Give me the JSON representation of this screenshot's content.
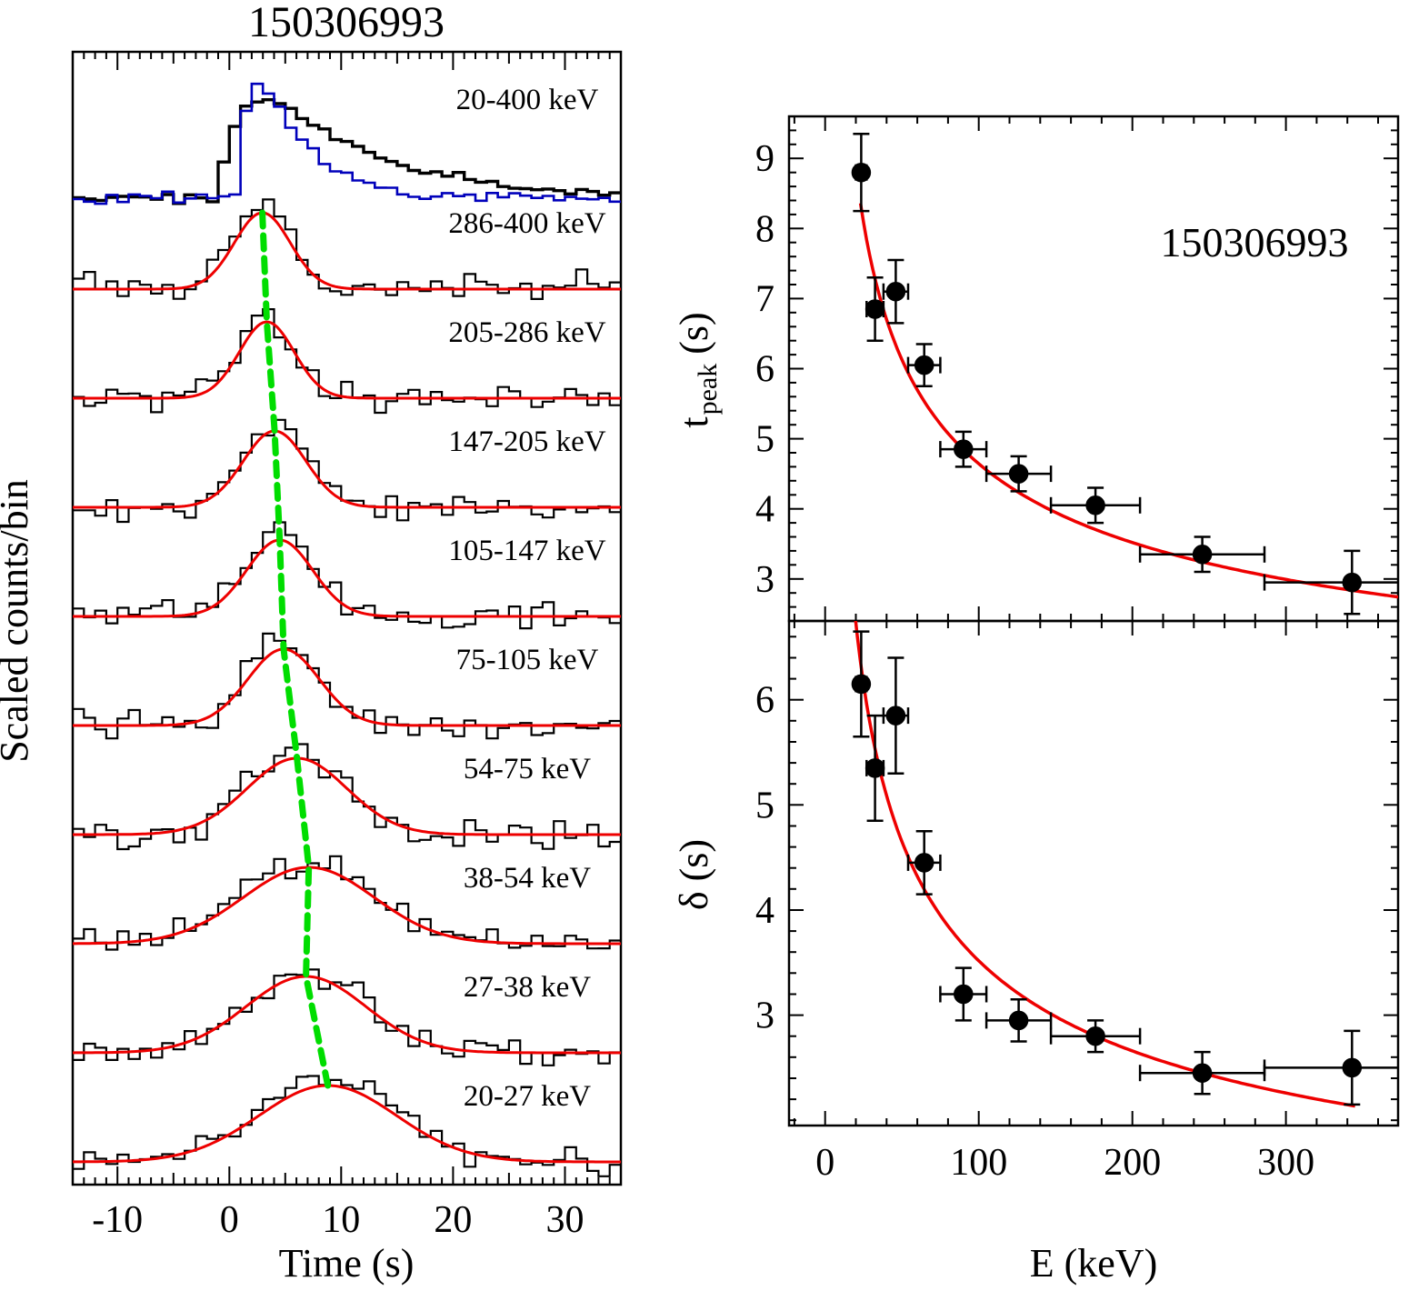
{
  "figure": {
    "kind": "gamma-ray-burst-spectral-lag-figure"
  },
  "chart_data": [
    {
      "id": "lightcurves",
      "type": "line",
      "title": "150306993",
      "xlabel": "Time (s)",
      "ylabel": "Scaled counts/bin",
      "xlim": [
        -14,
        35
      ],
      "xticks": [
        -10,
        0,
        10,
        20,
        30
      ],
      "bin_width_s": 1,
      "colors": {
        "histogram": "#000000",
        "overlay": "#0000bb",
        "fit": "#ee0000",
        "peak_track": "#00dd00"
      },
      "bands": [
        {
          "label": "20-400 keV",
          "kind": "composite"
        },
        {
          "label": "286-400 keV",
          "t_peak": 2.95,
          "delta": 2.5
        },
        {
          "label": "205-286 keV",
          "t_peak": 3.35,
          "delta": 2.45
        },
        {
          "label": "147-205 keV",
          "t_peak": 4.05,
          "delta": 2.8
        },
        {
          "label": "105-147 keV",
          "t_peak": 4.5,
          "delta": 2.95
        },
        {
          "label": "75-105 keV",
          "t_peak": 4.85,
          "delta": 3.2
        },
        {
          "label": "54-75 keV",
          "t_peak": 6.05,
          "delta": 4.45
        },
        {
          "label": "38-54 keV",
          "t_peak": 7.1,
          "delta": 5.85
        },
        {
          "label": "27-38 keV",
          "t_peak": 6.85,
          "delta": 5.35
        },
        {
          "label": "20-27 keV",
          "t_peak": 8.8,
          "delta": 6.15
        }
      ]
    },
    {
      "id": "tpeak-vs-energy",
      "type": "scatter",
      "annotation": "150306993",
      "ylabel_main": "t",
      "ylabel_sub": "peak",
      "ylabel_unit": "(s)",
      "xlim": [
        -23.5,
        373
      ],
      "ylim": [
        2.4,
        9.6
      ],
      "xticks": [
        0,
        100,
        200,
        300
      ],
      "yticks": [
        3,
        4,
        5,
        6,
        7,
        8,
        9
      ],
      "fit_color": "#ee0000",
      "fit": {
        "type": "power-law",
        "norm": 29.3,
        "index": -0.4,
        "E_range": [
          23,
          373
        ]
      },
      "points": [
        {
          "E": 23.5,
          "E_lo": 20,
          "E_hi": 27,
          "y": 8.8,
          "err": 0.55
        },
        {
          "E": 32.5,
          "E_lo": 27,
          "E_hi": 38,
          "y": 6.85,
          "err": 0.45
        },
        {
          "E": 46,
          "E_lo": 38,
          "E_hi": 54,
          "y": 7.1,
          "err": 0.45
        },
        {
          "E": 64.5,
          "E_lo": 54,
          "E_hi": 75,
          "y": 6.05,
          "err": 0.3
        },
        {
          "E": 90,
          "E_lo": 75,
          "E_hi": 105,
          "y": 4.85,
          "err": 0.25
        },
        {
          "E": 126,
          "E_lo": 105,
          "E_hi": 147,
          "y": 4.5,
          "err": 0.25
        },
        {
          "E": 176,
          "E_lo": 147,
          "E_hi": 205,
          "y": 4.05,
          "err": 0.25
        },
        {
          "E": 245.5,
          "E_lo": 205,
          "E_hi": 286,
          "y": 3.35,
          "err": 0.25
        },
        {
          "E": 343,
          "E_lo": 286,
          "E_hi": 400,
          "y": 2.95,
          "err": 0.45
        }
      ]
    },
    {
      "id": "delta-vs-energy",
      "type": "scatter",
      "xlabel": "E (keV)",
      "ylabel": "δ (s)",
      "xlim": [
        -23.5,
        373
      ],
      "ylim": [
        1.95,
        6.75
      ],
      "xticks": [
        0,
        100,
        200,
        300
      ],
      "yticks": [
        3,
        4,
        5,
        6
      ],
      "fit_color": "#ee0000",
      "fit": {
        "type": "power-law",
        "norm": 22.5,
        "index": -0.403,
        "E_range": [
          19,
          345
        ]
      },
      "points": [
        {
          "E": 23.5,
          "E_lo": 20,
          "E_hi": 27,
          "y": 6.15,
          "err": 0.5
        },
        {
          "E": 32.5,
          "E_lo": 27,
          "E_hi": 38,
          "y": 5.35,
          "err": 0.5
        },
        {
          "E": 46,
          "E_lo": 38,
          "E_hi": 54,
          "y": 5.85,
          "err": 0.55
        },
        {
          "E": 64.5,
          "E_lo": 54,
          "E_hi": 75,
          "y": 4.45,
          "err": 0.3
        },
        {
          "E": 90,
          "E_lo": 75,
          "E_hi": 105,
          "y": 3.2,
          "err": 0.25
        },
        {
          "E": 126,
          "E_lo": 105,
          "E_hi": 147,
          "y": 2.95,
          "err": 0.2
        },
        {
          "E": 176,
          "E_lo": 147,
          "E_hi": 205,
          "y": 2.8,
          "err": 0.15
        },
        {
          "E": 245.5,
          "E_lo": 205,
          "E_hi": 286,
          "y": 2.45,
          "err": 0.2
        },
        {
          "E": 343,
          "E_lo": 286,
          "E_hi": 400,
          "y": 2.5,
          "err": 0.35
        }
      ]
    }
  ]
}
